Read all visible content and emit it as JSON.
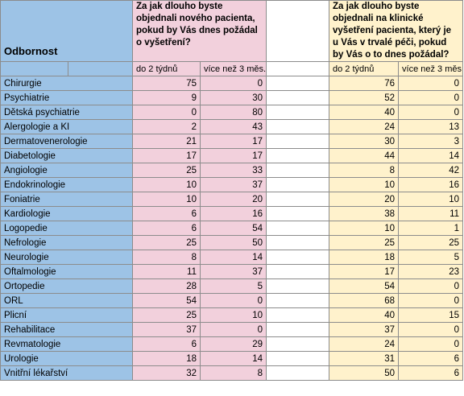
{
  "header": {
    "odbornost": "Odbornost",
    "group1_question": "Za jak dlouho byste objednali nového pacienta, pokud by Vás dnes požádal o vyšetření?",
    "group2_question": "Za jak dlouho byste objednali na klinické vyšetření pacienta, který je u Vás v trvalé péči, pokud by Vás o to dnes požádal?",
    "sub_col1": "do 2 týdnů",
    "sub_col2": "více než 3 měs."
  },
  "rows": [
    {
      "name": "Chirurgie",
      "g1a": "75",
      "g1b": "0",
      "g2a": "76",
      "g2b": "0"
    },
    {
      "name": "Psychiatrie",
      "g1a": "9",
      "g1b": "30",
      "g2a": "52",
      "g2b": "0"
    },
    {
      "name": "Dětská psychiatrie",
      "g1a": "0",
      "g1b": "80",
      "g2a": "40",
      "g2b": "0"
    },
    {
      "name": "Alergologie a KI",
      "g1a": "2",
      "g1b": "43",
      "g2a": "24",
      "g2b": "13"
    },
    {
      "name": "Dermatovenerologie",
      "g1a": "21",
      "g1b": "17",
      "g2a": "30",
      "g2b": "3"
    },
    {
      "name": "Diabetologie",
      "g1a": "17",
      "g1b": "17",
      "g2a": "44",
      "g2b": "14"
    },
    {
      "name": "Angiologie",
      "g1a": "25",
      "g1b": "33",
      "g2a": "8",
      "g2b": "42"
    },
    {
      "name": "Endokrinologie",
      "g1a": "10",
      "g1b": "37",
      "g2a": "10",
      "g2b": "16"
    },
    {
      "name": "Foniatrie",
      "g1a": "10",
      "g1b": "20",
      "g2a": "20",
      "g2b": "10"
    },
    {
      "name": "Kardiologie",
      "g1a": "6",
      "g1b": "16",
      "g2a": "38",
      "g2b": "11"
    },
    {
      "name": "Logopedie",
      "g1a": "6",
      "g1b": "54",
      "g2a": "10",
      "g2b": "1"
    },
    {
      "name": "Nefrologie",
      "g1a": "25",
      "g1b": "50",
      "g2a": "25",
      "g2b": "25"
    },
    {
      "name": "Neurologie",
      "g1a": "8",
      "g1b": "14",
      "g2a": "18",
      "g2b": "5"
    },
    {
      "name": "Oftalmologie",
      "g1a": "11",
      "g1b": "37",
      "g2a": "17",
      "g2b": "23"
    },
    {
      "name": "Ortopedie",
      "g1a": "28",
      "g1b": "5",
      "g2a": "54",
      "g2b": "0"
    },
    {
      "name": "ORL",
      "g1a": "54",
      "g1b": "0",
      "g2a": "68",
      "g2b": "0"
    },
    {
      "name": "Plicní",
      "g1a": "25",
      "g1b": "10",
      "g2a": "40",
      "g2b": "15"
    },
    {
      "name": "Rehabilitace",
      "g1a": "37",
      "g1b": "0",
      "g2a": "37",
      "g2b": "0"
    },
    {
      "name": "Revmatologie",
      "g1a": "6",
      "g1b": "29",
      "g2a": "24",
      "g2b": "0"
    },
    {
      "name": "Urologie",
      "g1a": "18",
      "g1b": "14",
      "g2a": "31",
      "g2b": "6"
    },
    {
      "name": "Vnitřní lékařství",
      "g1a": "32",
      "g1b": "8",
      "g2a": "50",
      "g2b": "6"
    }
  ],
  "colors": {
    "odbornost_bg": "#9dc3e6",
    "group1_bg": "#f2d0dc",
    "group2_bg": "#fff2cc",
    "grid_line": "#8c8c8c"
  }
}
